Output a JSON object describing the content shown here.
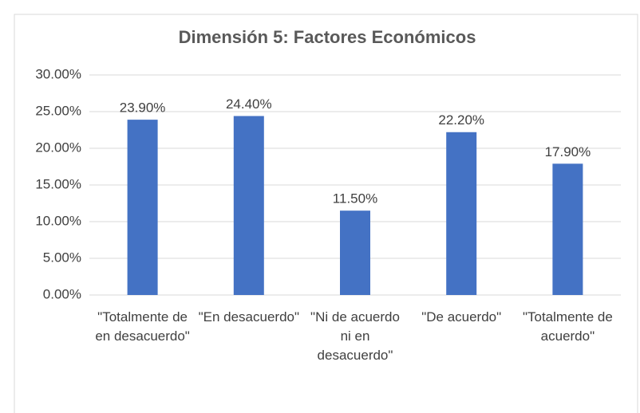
{
  "chart_data": {
    "type": "bar",
    "title": "Dimensión 5: Factores Económicos",
    "categories": [
      "\"Totalmente de en desacuerdo\"",
      "\"En desacuerdo\"",
      "\"Ni de acuerdo ni en desacuerdo\"",
      "\"De acuerdo\"",
      "\"Totalmente de acuerdo\""
    ],
    "values": [
      23.9,
      24.4,
      11.5,
      22.2,
      17.9
    ],
    "value_labels": [
      "23.90%",
      "24.40%",
      "11.50%",
      "22.20%",
      "17.90%"
    ],
    "color": "#4472c4",
    "ylim": [
      0,
      30
    ],
    "yticks": [
      {
        "value": 0,
        "label": "0.00%"
      },
      {
        "value": 5,
        "label": "5.00%"
      },
      {
        "value": 10,
        "label": "10.00%"
      },
      {
        "value": 15,
        "label": "15.00%"
      },
      {
        "value": 20,
        "label": "20.00%"
      },
      {
        "value": 25,
        "label": "25.00%"
      },
      {
        "value": 30,
        "label": "30.00%"
      }
    ],
    "grid": true
  }
}
